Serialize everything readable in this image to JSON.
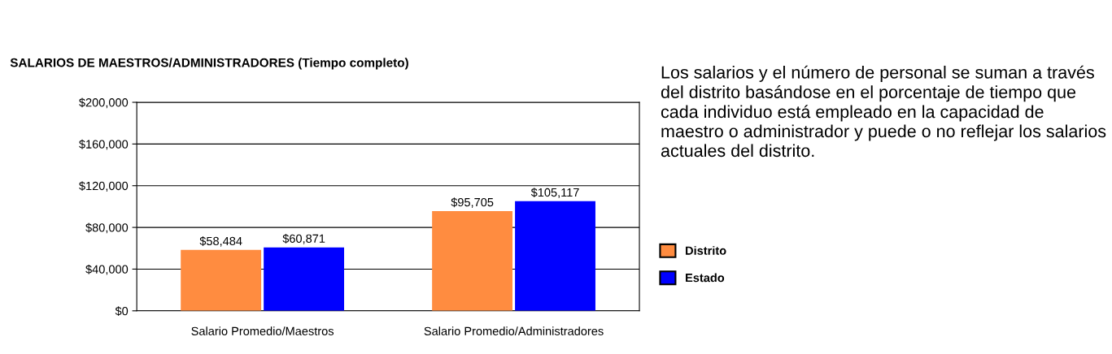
{
  "chart_data": {
    "type": "bar",
    "title": "SALARIOS DE MAESTROS/ADMINISTRADORES (Tiempo completo)",
    "categories": [
      "Salario Promedio/Maestros",
      "Salario Promedio/Administradores"
    ],
    "series": [
      {
        "name": "Distrito",
        "color": "#ff8c40",
        "values": [
          58484,
          95705
        ],
        "value_labels": [
          "$58,484",
          "$95,705"
        ]
      },
      {
        "name": "Estado",
        "color": "#0000ff",
        "values": [
          60871,
          105117
        ],
        "value_labels": [
          "$60,871",
          "$105,117"
        ]
      }
    ],
    "ylim": [
      0,
      200000
    ],
    "yticks": [
      {
        "value": 0,
        "label": "$0"
      },
      {
        "value": 40000,
        "label": "$40,000"
      },
      {
        "value": 80000,
        "label": "$80,000"
      },
      {
        "value": 120000,
        "label": "$120,000"
      },
      {
        "value": 160000,
        "label": "$160,000"
      },
      {
        "value": 200000,
        "label": "$200,000"
      }
    ],
    "grid": "y",
    "legend": "right",
    "annotations": [
      "Los salarios y el número de personal se suman a través del distrito basándose en el porcentaje de tiempo que cada individuo está empleado en la capacidad de maestro o administrador y puede o no reflejar los salarios actuales del distrito."
    ]
  }
}
